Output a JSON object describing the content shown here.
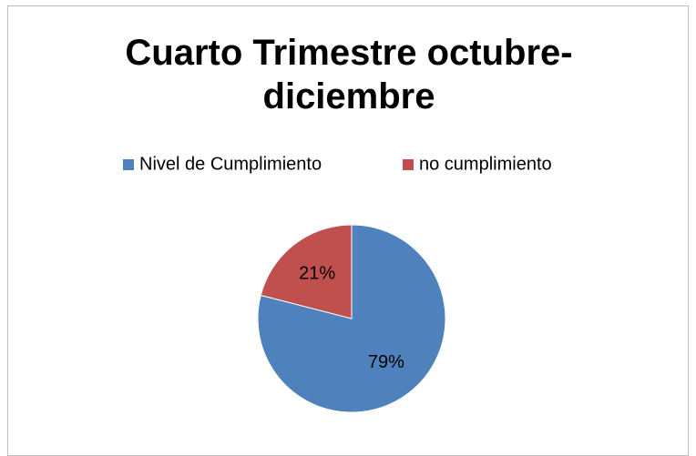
{
  "chart_data": {
    "type": "pie",
    "title": "Cuarto Trimestre octubre-diciembre",
    "categories": [
      "Nivel de Cumplimiento",
      "no cumplimiento"
    ],
    "values": [
      79,
      21
    ],
    "value_labels": [
      "79%",
      "21%"
    ],
    "colors": [
      "#4f81bd",
      "#c0504d"
    ],
    "legend": "top"
  }
}
